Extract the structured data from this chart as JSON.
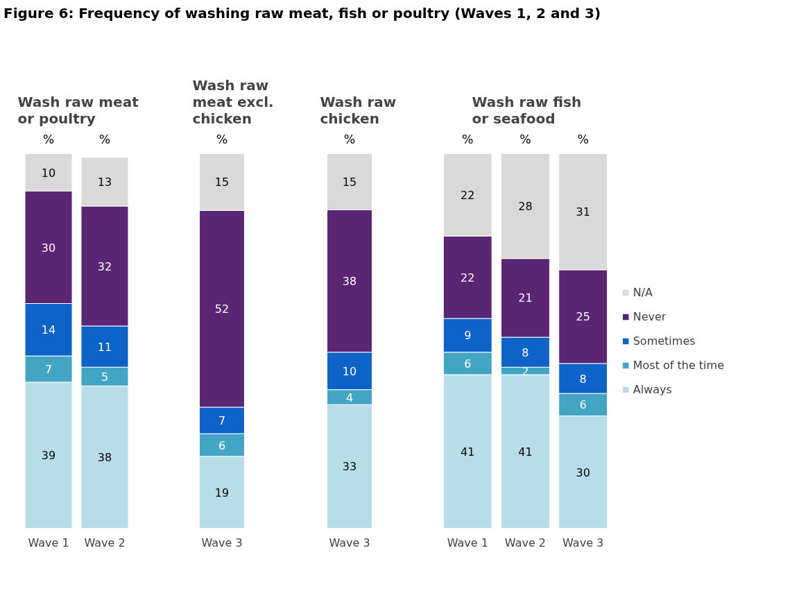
{
  "chart_data": [
    {
      "type": "other",
      "title": "Figure 6: Frequency of washing raw meat, fish or poultry (Waves 1, 2 and 3)"
    },
    {
      "type": "bar",
      "stacked": true,
      "title": "Wash raw meat or poultry",
      "categories": [
        "Wave 1",
        "Wave 2"
      ],
      "tick_labels": "x",
      "grid": false,
      "legend": false,
      "data_labels": true,
      "annotations": [
        "%",
        "%"
      ],
      "series": [
        {
          "color": "#b7dde8",
          "values": [
            39,
            38
          ]
        },
        {
          "color": "#42a5c4",
          "values": [
            7,
            5
          ]
        },
        {
          "color": "#0e63c8",
          "values": [
            14,
            11
          ]
        },
        {
          "color": "#5a2572",
          "values": [
            30,
            32
          ]
        },
        {
          "color": "#d9d9d9",
          "values": [
            10,
            13
          ]
        }
      ]
    },
    {
      "type": "bar",
      "stacked": true,
      "title": "Wash raw meat excl. chicken",
      "categories": [
        "Wave 3"
      ],
      "tick_labels": "x",
      "grid": false,
      "legend": false,
      "data_labels": true,
      "annotations": [
        "%"
      ],
      "series": [
        {
          "color": "#b7dde8",
          "values": [
            19
          ]
        },
        {
          "color": "#42a5c4",
          "values": [
            6
          ]
        },
        {
          "color": "#0e63c8",
          "values": [
            7
          ]
        },
        {
          "color": "#5a2572",
          "values": [
            52
          ]
        },
        {
          "color": "#d9d9d9",
          "values": [
            15
          ]
        }
      ]
    },
    {
      "type": "bar",
      "stacked": true,
      "title": "Wash raw chicken",
      "categories": [
        "Wave 3"
      ],
      "tick_labels": "x",
      "grid": false,
      "legend": false,
      "data_labels": true,
      "annotations": [
        "%"
      ],
      "series": [
        {
          "color": "#b7dde8",
          "values": [
            33
          ]
        },
        {
          "color": "#42a5c4",
          "values": [
            4
          ]
        },
        {
          "color": "#0e63c8",
          "values": [
            10
          ]
        },
        {
          "color": "#5a2572",
          "values": [
            38
          ]
        },
        {
          "color": "#d9d9d9",
          "values": [
            15
          ]
        }
      ]
    },
    {
      "type": "bar",
      "stacked": true,
      "title": "Wash raw fish or seafood",
      "categories": [
        "Wave 1",
        "Wave 2",
        "Wave 3"
      ],
      "tick_labels": "x",
      "grid": false,
      "legend": "right",
      "data_labels": true,
      "annotations": [
        "%",
        "%",
        "%"
      ],
      "series": [
        {
          "name": "Always",
          "color": "#b7dde8",
          "values": [
            41,
            41,
            30
          ]
        },
        {
          "name": "Most of the time",
          "color": "#42a5c4",
          "values": [
            6,
            2,
            6
          ]
        },
        {
          "name": "Sometimes",
          "color": "#0e63c8",
          "values": [
            9,
            8,
            8
          ]
        },
        {
          "name": "Never",
          "color": "#5a2572",
          "values": [
            22,
            21,
            25
          ]
        },
        {
          "name": "N/A",
          "color": "#d9d9d9",
          "values": [
            22,
            28,
            31
          ]
        }
      ]
    }
  ]
}
